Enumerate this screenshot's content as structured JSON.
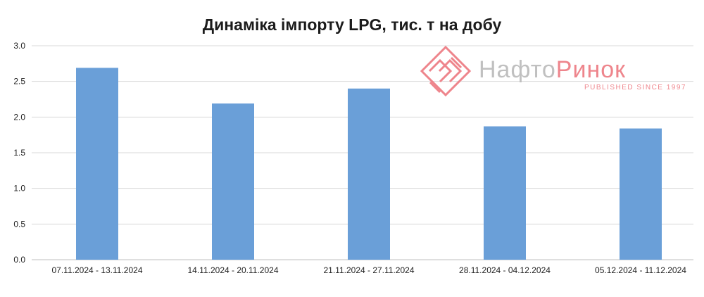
{
  "chart_data": {
    "type": "bar",
    "title": "Динаміка імпорту LPG, тис. т на добу",
    "xlabel": "",
    "ylabel": "",
    "categories": [
      "07.11.2024 - 13.11.2024",
      "14.11.2024 - 20.11.2024",
      "21.11.2024 - 27.11.2024",
      "28.11.2024 - 04.12.2024",
      "05.12.2024 - 11.12.2024"
    ],
    "values": [
      2.69,
      2.19,
      2.4,
      1.87,
      1.84
    ],
    "ylim": [
      0,
      3.0
    ],
    "yticks": [
      "0.0",
      "0.5",
      "1.0",
      "1.5",
      "2.0",
      "2.5",
      "3.0"
    ],
    "grid": true,
    "legend": "none",
    "bar_color": "#6a9fd8"
  },
  "watermark": {
    "name_part1": "Нафто",
    "name_part2": "Ринок",
    "tagline": "PUBLISHED SINCE 1997",
    "logo_icon": "diamond-chevron-logo-icon",
    "color_gray": "#bdbdbd",
    "color_red": "#ee7f86"
  }
}
